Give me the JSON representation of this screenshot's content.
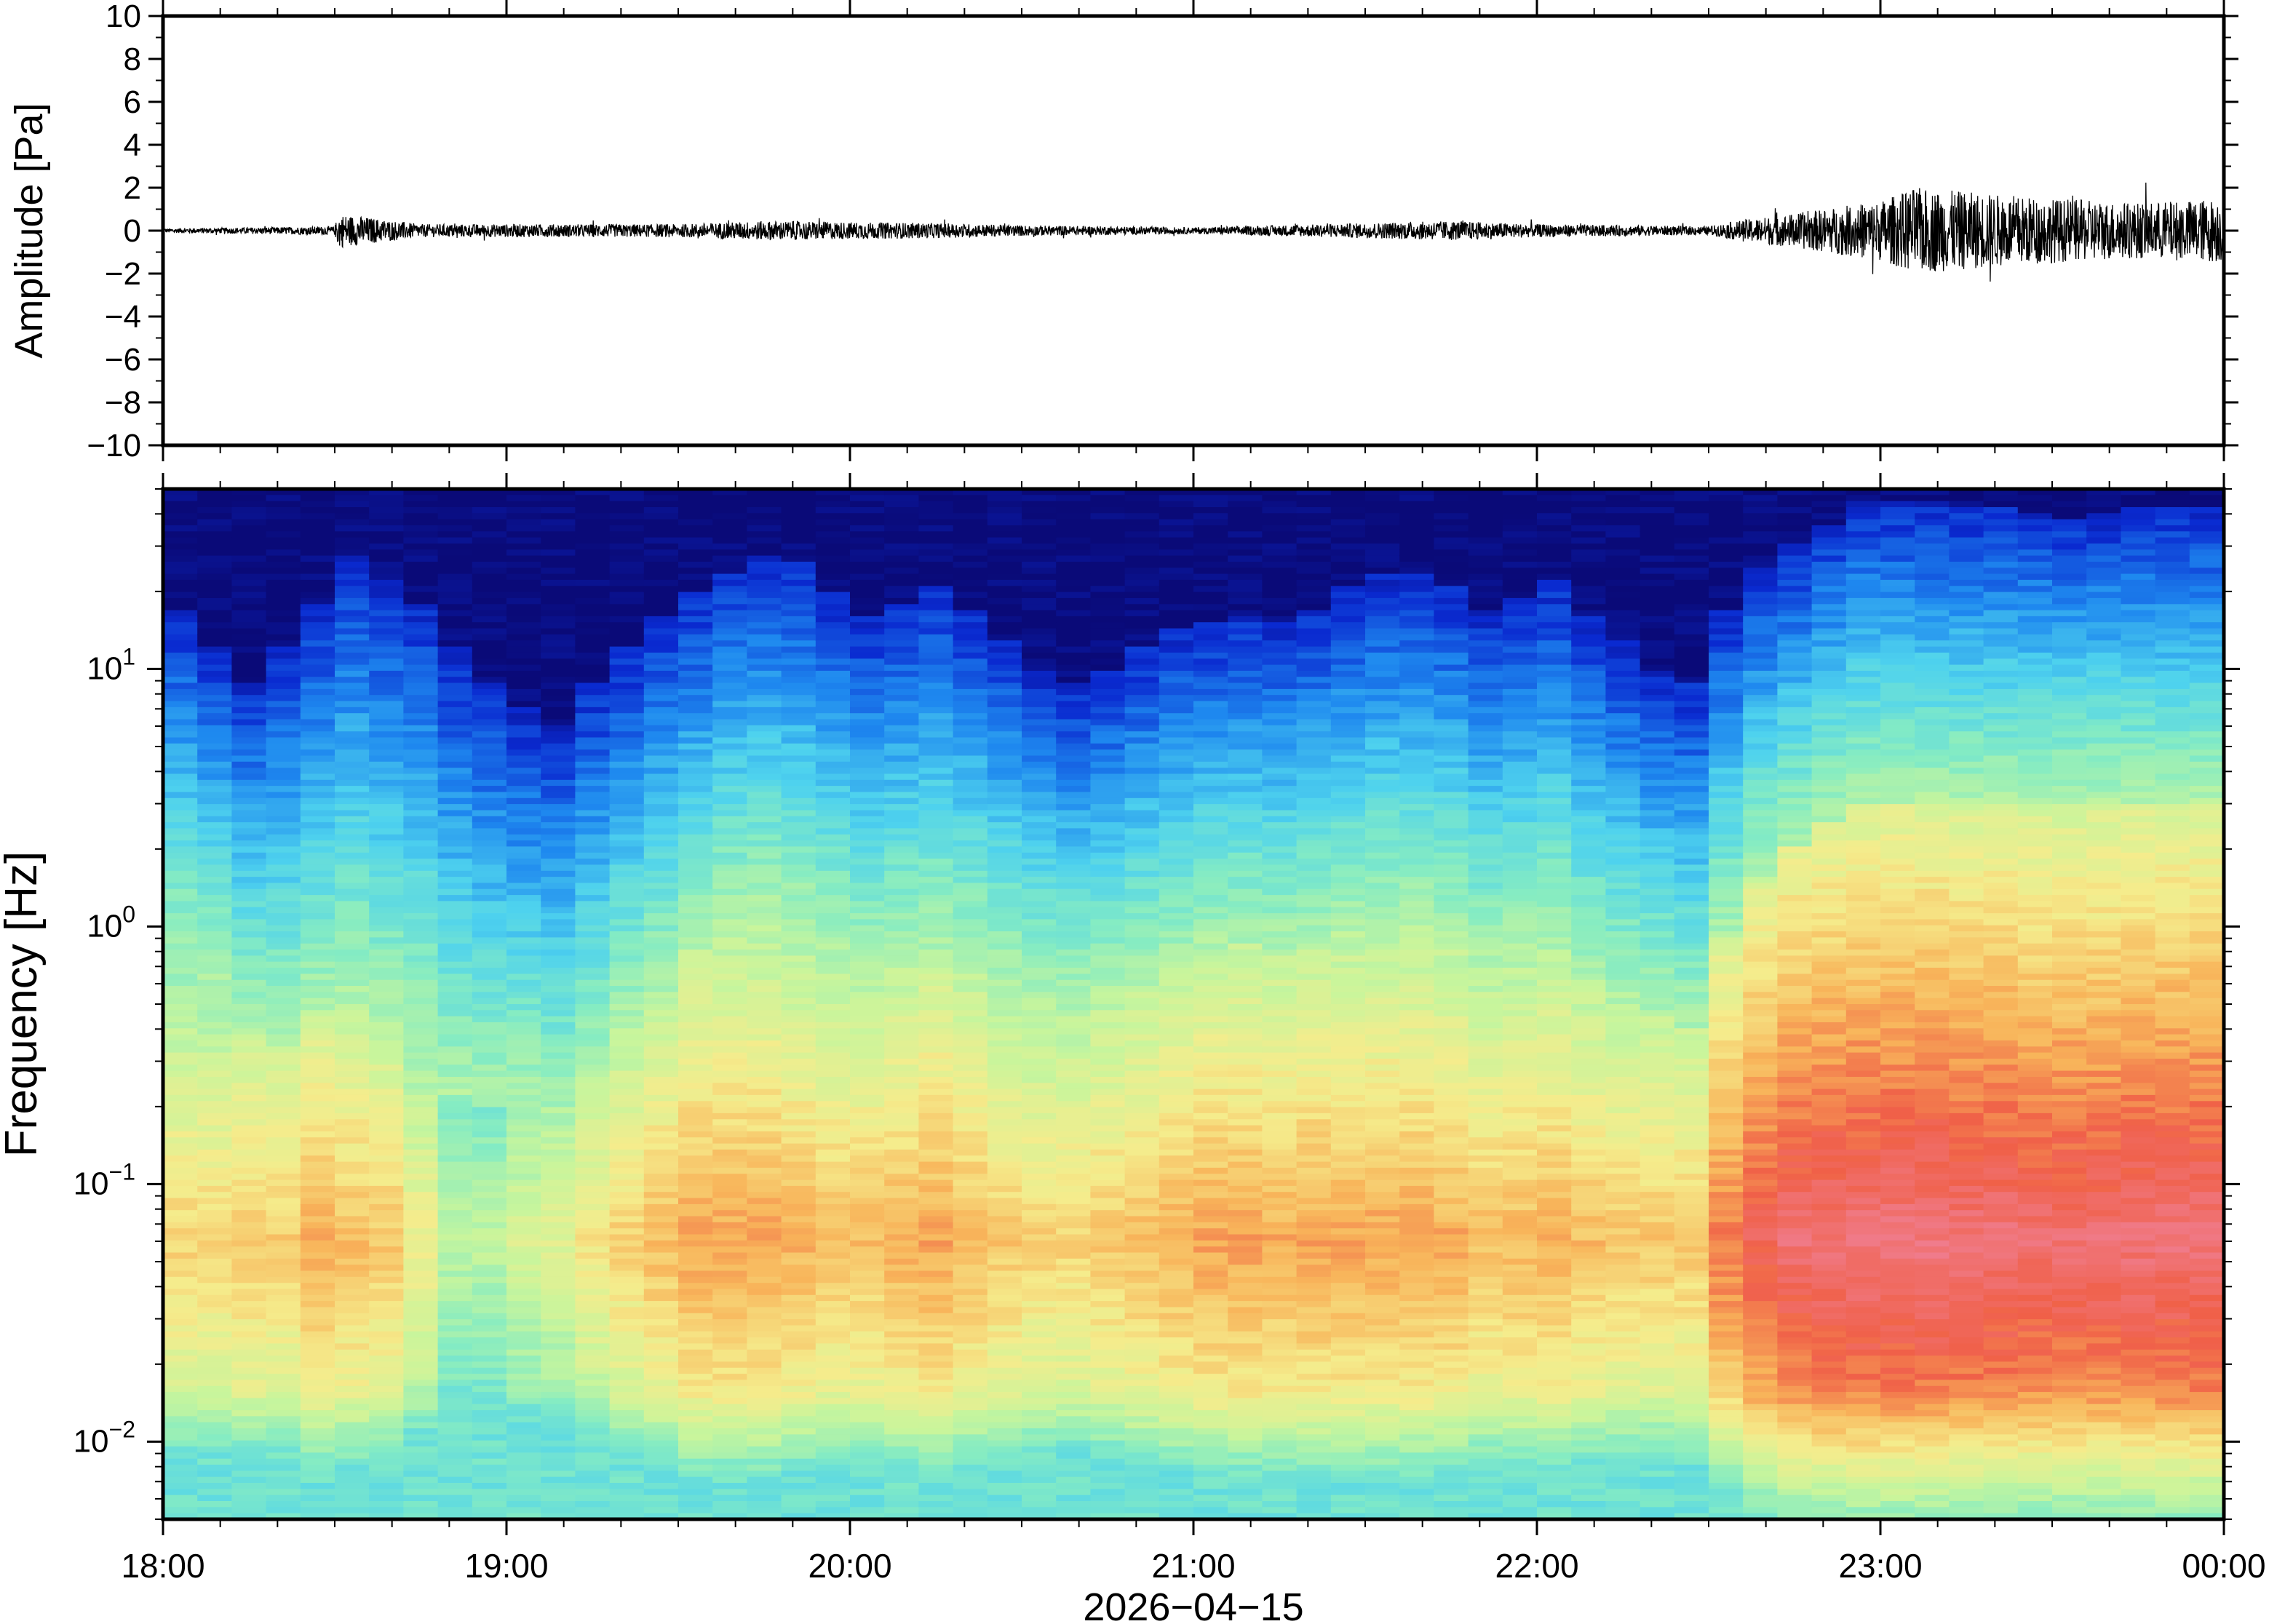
{
  "chart_data": [
    {
      "type": "line",
      "ylabel": "Amplitude [Pa]",
      "ylim": [
        -10,
        10
      ],
      "yticks": [
        {
          "value": -10,
          "label": "−10"
        },
        {
          "value": -8,
          "label": "−8"
        },
        {
          "value": -6,
          "label": "−6"
        },
        {
          "value": -4,
          "label": "−4"
        },
        {
          "value": -2,
          "label": "−2"
        },
        {
          "value": 0,
          "label": "0"
        },
        {
          "value": 2,
          "label": "2"
        },
        {
          "value": 4,
          "label": "4"
        },
        {
          "value": 6,
          "label": "6"
        },
        {
          "value": 8,
          "label": "8"
        },
        {
          "value": 10,
          "label": "10"
        }
      ],
      "xlim": [
        "18:00",
        "00:00"
      ],
      "line_color": "#000000",
      "envelope": {
        "time_h": [
          18.0,
          18.5,
          18.51,
          18.75,
          19.5,
          19.75,
          20.25,
          20.5,
          21.0,
          21.5,
          21.75,
          22.0,
          22.5,
          22.6,
          22.75,
          23.0,
          23.1,
          23.5,
          23.75,
          24.0
        ],
        "amplitude_pa": [
          0.1,
          0.2,
          0.8,
          0.3,
          0.3,
          0.45,
          0.35,
          0.25,
          0.15,
          0.35,
          0.45,
          0.3,
          0.2,
          0.5,
          0.8,
          1.4,
          2.0,
          1.5,
          1.3,
          1.5
        ]
      }
    },
    {
      "type": "heatmap",
      "ylabel": "Frequency [Hz]",
      "y_scale": "log",
      "ylim_hz": [
        0.005,
        50
      ],
      "yticks": [
        {
          "value": 0.01,
          "base": "10",
          "exp": "−2"
        },
        {
          "value": 0.1,
          "base": "10",
          "exp": "−1"
        },
        {
          "value": 1,
          "base": "10",
          "exp": "0"
        },
        {
          "value": 10,
          "base": "10",
          "exp": "1"
        }
      ],
      "xlabel": "2026−04−15",
      "xticks": [
        {
          "value": 18,
          "label": "18:00"
        },
        {
          "value": 19,
          "label": "19:00"
        },
        {
          "value": 20,
          "label": "20:00"
        },
        {
          "value": 21,
          "label": "21:00"
        },
        {
          "value": 22,
          "label": "22:00"
        },
        {
          "value": 23,
          "label": "23:00"
        },
        {
          "value": 24,
          "label": "00:00"
        }
      ],
      "colormap": [
        "#0a0a78",
        "#0a2ad0",
        "#1e88ef",
        "#4ed2ee",
        "#86ecc2",
        "#c8f59c",
        "#f5ec8c",
        "#f8b45a",
        "#f06048",
        "#f07c8c"
      ],
      "column_width_min": 10,
      "high_freq_cutoff_hz": [
        17,
        12,
        9,
        12,
        18,
        28,
        22,
        18,
        12,
        9,
        7,
        6,
        9,
        12,
        16,
        20,
        24,
        28,
        26,
        20,
        16,
        18,
        21,
        17,
        13,
        10,
        9,
        10,
        12,
        14,
        15,
        16,
        15,
        17,
        21,
        23,
        24,
        21,
        17,
        19,
        22,
        16,
        13,
        10,
        9,
        17,
        25,
        30,
        37,
        45,
        45,
        44,
        43,
        42,
        40,
        39,
        40,
        42,
        42,
        42
      ],
      "low_energy_edge_hz": [
        0.7,
        0.6,
        0.4,
        0.35,
        0.45,
        0.5,
        0.4,
        0.35,
        0.22,
        0.2,
        0.2,
        0.18,
        0.25,
        0.4,
        0.55,
        0.8,
        1.0,
        1.1,
        1.0,
        0.8,
        0.7,
        0.75,
        0.8,
        0.7,
        0.6,
        0.55,
        0.5,
        0.55,
        0.6,
        0.7,
        0.8,
        0.85,
        0.8,
        0.85,
        0.95,
        1.0,
        1.0,
        0.9,
        0.7,
        0.75,
        0.8,
        0.6,
        0.5,
        0.45,
        0.4,
        0.9,
        1.5,
        2.0,
        2.5,
        3.0,
        3.0,
        3.0,
        3.0,
        3.0,
        3.0,
        3.0,
        3.0,
        3.0,
        3.0,
        3.0
      ],
      "peak_level": [
        0.72,
        0.72,
        0.74,
        0.73,
        0.78,
        0.76,
        0.74,
        0.66,
        0.55,
        0.55,
        0.6,
        0.62,
        0.68,
        0.72,
        0.76,
        0.8,
        0.8,
        0.8,
        0.78,
        0.76,
        0.76,
        0.78,
        0.8,
        0.77,
        0.74,
        0.72,
        0.72,
        0.74,
        0.76,
        0.78,
        0.8,
        0.8,
        0.79,
        0.8,
        0.8,
        0.8,
        0.8,
        0.79,
        0.76,
        0.77,
        0.78,
        0.76,
        0.74,
        0.74,
        0.74,
        0.86,
        0.92,
        0.96,
        0.97,
        0.98,
        0.98,
        0.98,
        0.97,
        0.97,
        0.96,
        0.96,
        0.96,
        0.97,
        0.97,
        0.97
      ]
    }
  ]
}
